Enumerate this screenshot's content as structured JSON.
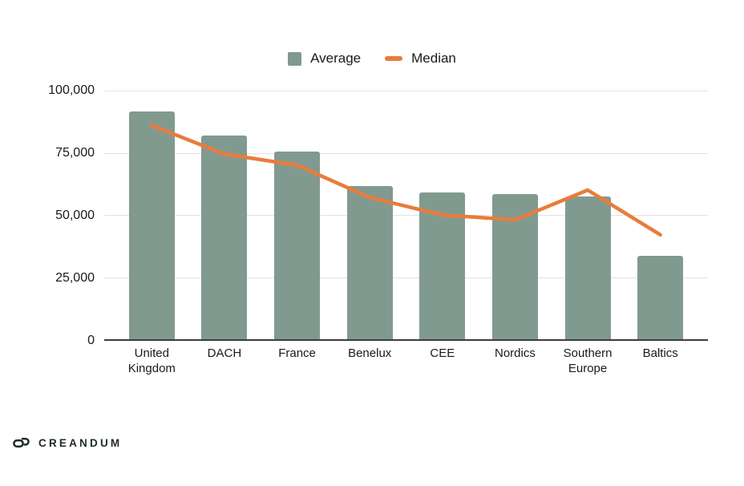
{
  "page": {
    "background": "#ffffff"
  },
  "chart_data": {
    "type": "bar",
    "categories": [
      "United Kingdom",
      "DACH",
      "France",
      "Benelux",
      "CEE",
      "Nordics",
      "Southern Europe",
      "Baltics"
    ],
    "series": [
      {
        "name": "Average",
        "type": "bar",
        "color": "#819A90",
        "values": [
          91500,
          82000,
          75500,
          61500,
          59000,
          58500,
          57500,
          33500
        ]
      },
      {
        "name": "Median",
        "type": "line",
        "color": "#E97C3C",
        "values": [
          86000,
          74500,
          70000,
          57000,
          50000,
          48000,
          60000,
          42000
        ]
      }
    ],
    "title": "",
    "xlabel": "",
    "ylabel": "",
    "ylim": [
      0,
      100000
    ],
    "yticks": [
      {
        "value": 0,
        "label": "0"
      },
      {
        "value": 25000,
        "label": "25,000"
      },
      {
        "value": 50000,
        "label": "50,000"
      },
      {
        "value": 75000,
        "label": "75,000"
      },
      {
        "value": 100000,
        "label": "100,000"
      }
    ],
    "grid": true,
    "legend_position": "top-center",
    "colors": {
      "gridline": "#e2e2e2",
      "axis": "#3d3d3d",
      "text": "#1a1a1a"
    }
  },
  "footer": {
    "logo_text": "CREANDUM"
  }
}
